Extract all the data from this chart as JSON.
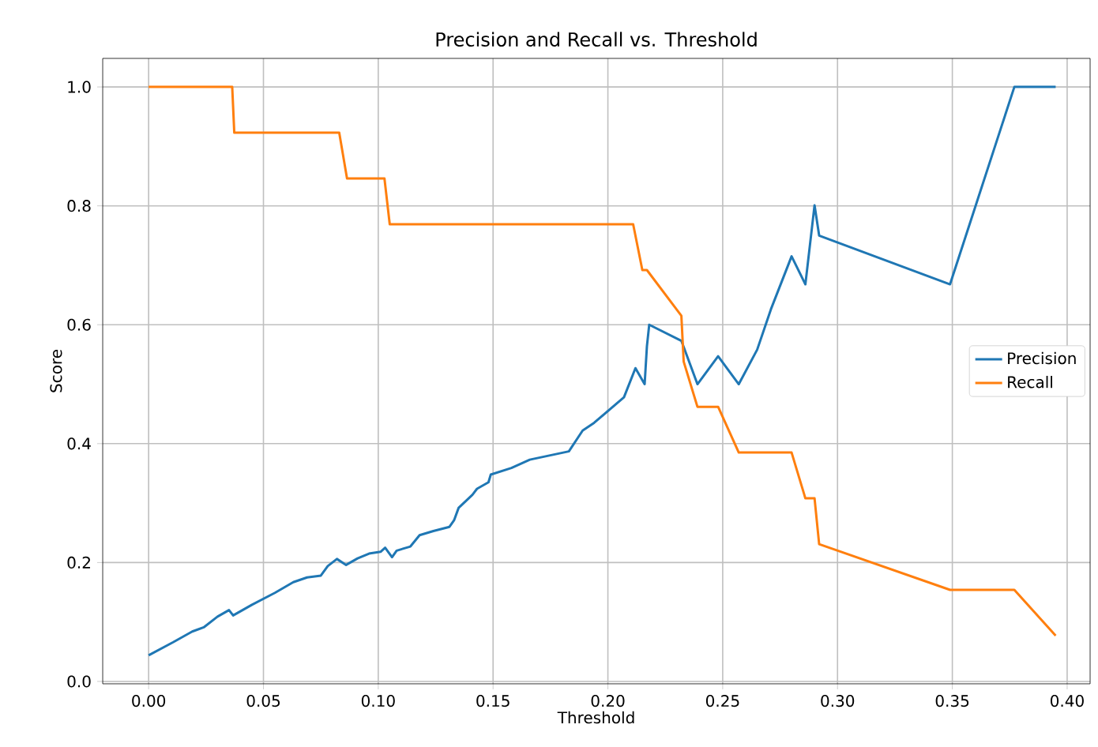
{
  "chart_data": {
    "type": "line",
    "title": "Precision and Recall vs. Threshold",
    "xlabel": "Threshold",
    "ylabel": "Score",
    "xlim": [
      -0.02,
      0.41
    ],
    "ylim": [
      -0.004,
      1.048
    ],
    "xticks": [
      {
        "value": 0,
        "label": "0.00"
      },
      {
        "value": 0.05,
        "label": "0.05"
      },
      {
        "value": 0.1,
        "label": "0.10"
      },
      {
        "value": 0.15,
        "label": "0.15"
      },
      {
        "value": 0.2,
        "label": "0.20"
      },
      {
        "value": 0.25,
        "label": "0.25"
      },
      {
        "value": 0.3,
        "label": "0.30"
      },
      {
        "value": 0.35,
        "label": "0.35"
      },
      {
        "value": 0.4,
        "label": "0.40"
      }
    ],
    "yticks": [
      {
        "value": 0,
        "label": "0.0"
      },
      {
        "value": 0.2,
        "label": "0.2"
      },
      {
        "value": 0.4,
        "label": "0.4"
      },
      {
        "value": 0.6,
        "label": "0.6"
      },
      {
        "value": 0.8,
        "label": "0.8"
      },
      {
        "value": 1,
        "label": "1.0"
      }
    ],
    "grid": true,
    "legend": "right",
    "marker": "none",
    "line_style": "solid",
    "series": [
      {
        "name": "Precision",
        "color": "#1f77b4",
        "x": [
          0,
          0.0107,
          0.019,
          0.024,
          0.03,
          0.035,
          0.0368,
          0.045,
          0.055,
          0.063,
          0.069,
          0.075,
          0.078,
          0.082,
          0.086,
          0.091,
          0.096,
          0.101,
          0.103,
          0.106,
          0.108,
          0.114,
          0.118,
          0.124,
          0.131,
          0.133,
          0.135,
          0.141,
          0.143,
          0.148,
          0.149,
          0.158,
          0.166,
          0.183,
          0.189,
          0.194,
          0.207,
          0.212,
          0.216,
          0.217,
          0.218,
          0.232,
          0.239,
          0.248,
          0.257,
          0.265,
          0.271,
          0.28,
          0.286,
          0.29,
          0.292,
          0.349,
          0.377,
          0.395
        ],
        "values": [
          0.044,
          0.066,
          0.084,
          0.091,
          0.109,
          0.12,
          0.111,
          0.129,
          0.149,
          0.167,
          0.175,
          0.178,
          0.194,
          0.206,
          0.196,
          0.207,
          0.215,
          0.218,
          0.225,
          0.209,
          0.22,
          0.227,
          0.246,
          0.253,
          0.26,
          0.271,
          0.292,
          0.314,
          0.324,
          0.335,
          0.348,
          0.359,
          0.373,
          0.387,
          0.422,
          0.435,
          0.478,
          0.527,
          0.5,
          0.564,
          0.6,
          0.573,
          0.5,
          0.547,
          0.5,
          0.558,
          0.626,
          0.715,
          0.668,
          0.801,
          0.75,
          0.668,
          1.0,
          1.0
        ]
      },
      {
        "name": "Recall",
        "color": "#ff7f0e",
        "x": [
          0,
          0.0364,
          0.0373,
          0.083,
          0.0864,
          0.1027,
          0.105,
          0.211,
          0.215,
          0.217,
          0.232,
          0.233,
          0.239,
          0.248,
          0.257,
          0.28,
          0.286,
          0.29,
          0.292,
          0.349,
          0.377,
          0.395
        ],
        "values": [
          1.0,
          1.0,
          0.923,
          0.923,
          0.846,
          0.846,
          0.769,
          0.769,
          0.692,
          0.692,
          0.615,
          0.538,
          0.462,
          0.462,
          0.385,
          0.385,
          0.308,
          0.308,
          0.231,
          0.154,
          0.154,
          0.077
        ]
      }
    ]
  }
}
